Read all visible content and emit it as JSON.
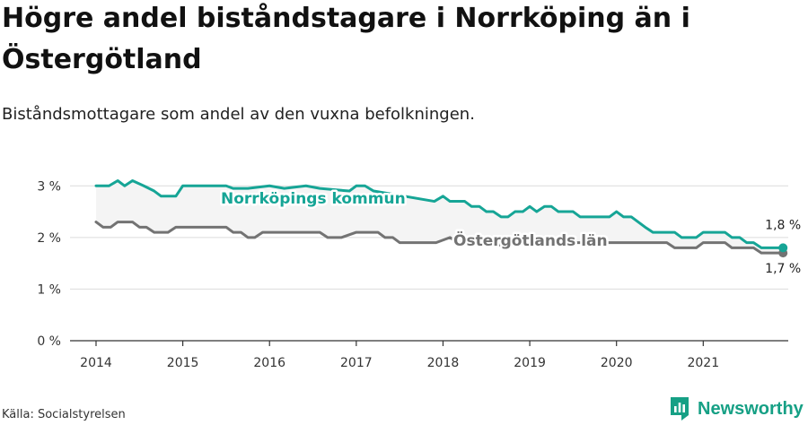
{
  "title": "Högre andel biståndstagare i Norrköping än i Östergötland",
  "subtitle": "Biståndsmottagare som andel av den vuxna befolkningen.",
  "source": "Källa: Socialstyrelsen",
  "brand": "Newsworthy",
  "colors": {
    "norrkoping": "#16a596",
    "ostergotland": "#737373",
    "band": "#f4f4f4",
    "brand": "#16a085"
  },
  "chart_data": {
    "type": "line",
    "x_unit": "year",
    "xlim": [
      2013.7,
      2021.98
    ],
    "ylim": [
      0,
      3.3
    ],
    "x_ticks": [
      2014,
      2015,
      2016,
      2017,
      2018,
      2019,
      2020,
      2021
    ],
    "x_tick_labels": [
      "2014",
      "2015",
      "2016",
      "2017",
      "2018",
      "2019",
      "2020",
      "2021"
    ],
    "y_ticks": [
      0,
      1,
      2,
      3
    ],
    "y_tick_labels": [
      "0 %",
      "1 %",
      "2 %",
      "3 %"
    ],
    "grid": true,
    "series": [
      {
        "name": "Norrköpings kommun",
        "color_key": "norrkoping",
        "end_label": "1,8 %",
        "points": [
          [
            2014.0,
            3.0
          ],
          [
            2014.15,
            3.0
          ],
          [
            2014.25,
            3.1
          ],
          [
            2014.33,
            3.0
          ],
          [
            2014.42,
            3.1
          ],
          [
            2014.55,
            3.0
          ],
          [
            2014.67,
            2.9
          ],
          [
            2014.75,
            2.8
          ],
          [
            2014.92,
            2.8
          ],
          [
            2015.0,
            3.0
          ],
          [
            2015.17,
            3.0
          ],
          [
            2015.5,
            3.0
          ],
          [
            2015.58,
            2.95
          ],
          [
            2015.75,
            2.95
          ],
          [
            2016.0,
            3.0
          ],
          [
            2016.17,
            2.95
          ],
          [
            2016.42,
            3.0
          ],
          [
            2016.58,
            2.95
          ],
          [
            2016.92,
            2.9
          ],
          [
            2017.0,
            3.0
          ],
          [
            2017.1,
            3.0
          ],
          [
            2017.2,
            2.9
          ],
          [
            2017.9,
            2.7
          ],
          [
            2018.0,
            2.8
          ],
          [
            2018.08,
            2.7
          ],
          [
            2018.25,
            2.7
          ],
          [
            2018.33,
            2.6
          ],
          [
            2018.42,
            2.6
          ],
          [
            2018.5,
            2.5
          ],
          [
            2018.58,
            2.5
          ],
          [
            2018.67,
            2.4
          ],
          [
            2018.75,
            2.4
          ],
          [
            2018.83,
            2.5
          ],
          [
            2018.92,
            2.5
          ],
          [
            2019.0,
            2.6
          ],
          [
            2019.08,
            2.5
          ],
          [
            2019.17,
            2.6
          ],
          [
            2019.25,
            2.6
          ],
          [
            2019.33,
            2.5
          ],
          [
            2019.5,
            2.5
          ],
          [
            2019.58,
            2.4
          ],
          [
            2019.83,
            2.4
          ],
          [
            2019.92,
            2.4
          ],
          [
            2020.0,
            2.5
          ],
          [
            2020.08,
            2.4
          ],
          [
            2020.17,
            2.4
          ],
          [
            2020.25,
            2.3
          ],
          [
            2020.33,
            2.2
          ],
          [
            2020.42,
            2.1
          ],
          [
            2020.67,
            2.1
          ],
          [
            2020.75,
            2.0
          ],
          [
            2020.92,
            2.0
          ],
          [
            2021.0,
            2.1
          ],
          [
            2021.25,
            2.1
          ],
          [
            2021.33,
            2.0
          ],
          [
            2021.42,
            2.0
          ],
          [
            2021.5,
            1.9
          ],
          [
            2021.58,
            1.9
          ],
          [
            2021.67,
            1.8
          ],
          [
            2021.92,
            1.8
          ]
        ]
      },
      {
        "name": "Östergötlands län",
        "color_key": "ostergotland",
        "end_label": "1,7 %",
        "points": [
          [
            2014.0,
            2.3
          ],
          [
            2014.08,
            2.2
          ],
          [
            2014.17,
            2.2
          ],
          [
            2014.25,
            2.3
          ],
          [
            2014.42,
            2.3
          ],
          [
            2014.5,
            2.2
          ],
          [
            2014.58,
            2.2
          ],
          [
            2014.67,
            2.1
          ],
          [
            2014.83,
            2.1
          ],
          [
            2014.92,
            2.2
          ],
          [
            2015.5,
            2.2
          ],
          [
            2015.58,
            2.1
          ],
          [
            2015.67,
            2.1
          ],
          [
            2015.75,
            2.0
          ],
          [
            2015.83,
            2.0
          ],
          [
            2015.92,
            2.1
          ],
          [
            2016.58,
            2.1
          ],
          [
            2016.67,
            2.0
          ],
          [
            2016.83,
            2.0
          ],
          [
            2017.0,
            2.1
          ],
          [
            2017.25,
            2.1
          ],
          [
            2017.33,
            2.0
          ],
          [
            2017.42,
            2.0
          ],
          [
            2017.5,
            1.9
          ],
          [
            2017.92,
            1.9
          ],
          [
            2018.08,
            2.0
          ],
          [
            2018.17,
            1.9
          ],
          [
            2018.33,
            1.9
          ],
          [
            2018.42,
            2.0
          ],
          [
            2018.5,
            1.9
          ],
          [
            2018.67,
            1.85
          ],
          [
            2019.0,
            1.9
          ],
          [
            2019.5,
            1.9
          ],
          [
            2020.0,
            1.9
          ],
          [
            2020.5,
            1.9
          ],
          [
            2020.58,
            1.9
          ],
          [
            2020.67,
            1.8
          ],
          [
            2020.92,
            1.8
          ],
          [
            2021.0,
            1.9
          ],
          [
            2021.25,
            1.9
          ],
          [
            2021.33,
            1.8
          ],
          [
            2021.58,
            1.8
          ],
          [
            2021.67,
            1.7
          ],
          [
            2021.92,
            1.7
          ]
        ]
      }
    ]
  }
}
